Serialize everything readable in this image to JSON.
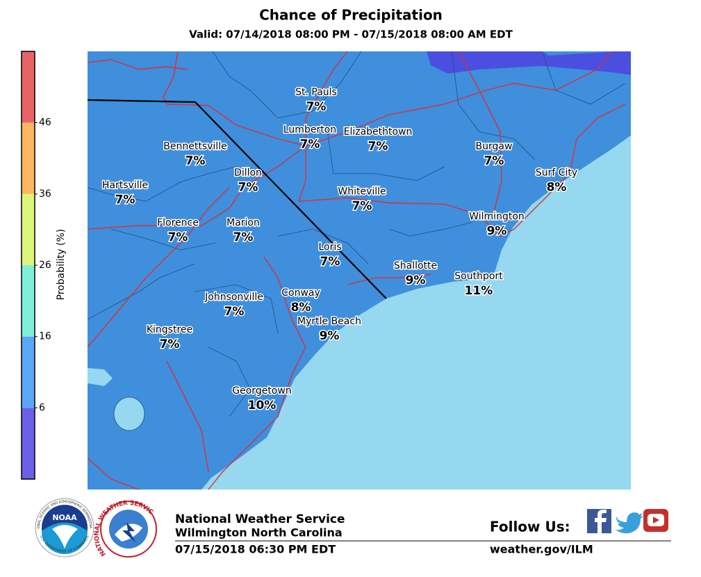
{
  "header": {
    "title": "Chance of Precipitation",
    "subtitle": "Valid: 07/14/2018 08:00 PM - 07/15/2018 08:00 AM EDT"
  },
  "colorbar": {
    "label": "Probability (%)",
    "ticks": [
      6,
      16,
      26,
      36,
      46
    ],
    "colors": [
      "#6b5fe8",
      "#5aa8f5",
      "#7ff0d8",
      "#dcf57a",
      "#fbb661",
      "#e86464"
    ]
  },
  "map": {
    "cities": [
      {
        "name": "St. Pauls",
        "value": "7%"
      },
      {
        "name": "Lumberton",
        "value": "7%"
      },
      {
        "name": "Elizabethtown",
        "value": "7%"
      },
      {
        "name": "Bennettsville",
        "value": "7%"
      },
      {
        "name": "Burgaw",
        "value": "7%"
      },
      {
        "name": "Dillon",
        "value": "7%"
      },
      {
        "name": "Surf City",
        "value": "8%"
      },
      {
        "name": "Hartsville",
        "value": "7%"
      },
      {
        "name": "Whiteville",
        "value": "7%"
      },
      {
        "name": "Wilmington",
        "value": "9%"
      },
      {
        "name": "Florence",
        "value": "7%"
      },
      {
        "name": "Marion",
        "value": "7%"
      },
      {
        "name": "Loris",
        "value": "7%"
      },
      {
        "name": "Shallotte",
        "value": "9%"
      },
      {
        "name": "Southport",
        "value": "11%"
      },
      {
        "name": "Conway",
        "value": "8%"
      },
      {
        "name": "Johnsonville",
        "value": "7%"
      },
      {
        "name": "Myrtle Beach",
        "value": "9%"
      },
      {
        "name": "Kingstree",
        "value": "7%"
      },
      {
        "name": "Georgetown",
        "value": "10%"
      }
    ]
  },
  "footer": {
    "noaa_logo": "NOAA",
    "noaa_ring": "NATIONAL OCEANIC AND ATMOSPHERIC ADMINISTRATION",
    "noaa_ring_bottom": "U.S. DEPARTMENT OF COMMERCE",
    "nws_ring": "NATIONAL WEATHER SERVICE",
    "office": "National Weather Service",
    "location": "Wilmington North Carolina",
    "issued": "07/15/2018 06:30 PM EDT",
    "follow": "Follow Us:",
    "url": "weather.gov/ILM"
  }
}
